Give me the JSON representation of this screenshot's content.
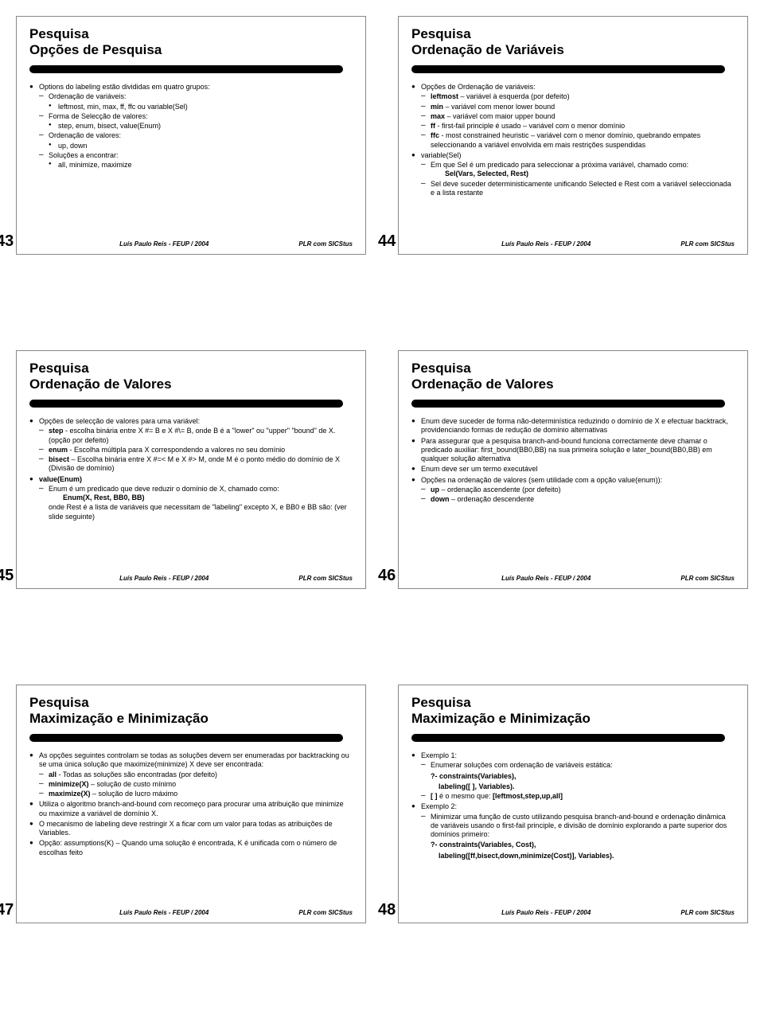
{
  "footer": {
    "center": "Luís Paulo Reis - FEUP / 2004",
    "right": "PLR com SICStus"
  },
  "slides": [
    {
      "num": "43",
      "sup": "Pesquisa",
      "main": "Opções de Pesquisa",
      "body": {
        "l1": [
          {
            "t": "Options do labeling estão divididas em quatro grupos:",
            "l2": [
              {
                "t": "Ordenação de variáveis:",
                "l3": [
                  {
                    "t": "leftmost, min, max, ff, ffc ou variable(Sel)"
                  }
                ]
              },
              {
                "t": "Forma de Selecção de valores:",
                "l3": [
                  {
                    "t": "step, enum, bisect, value(Enum)"
                  }
                ]
              },
              {
                "t": "Ordenação de valores:",
                "l3": [
                  {
                    "t": "up, down"
                  }
                ]
              },
              {
                "t": "Soluções a encontrar:",
                "l3": [
                  {
                    "t": "all, minimize, maximize"
                  }
                ]
              }
            ]
          }
        ]
      }
    },
    {
      "num": "44",
      "sup": "Pesquisa",
      "main": "Ordenação de Variáveis",
      "body": {
        "l1": [
          {
            "t": "Opções de Ordenação de variáveis:",
            "l2": [
              {
                "html": "<b>leftmost</b> – variável à esquerda (por defeito)"
              },
              {
                "html": "<b>min</b> – variável com menor lower bound"
              },
              {
                "html": "<b>max</b> – variável com maior upper bound"
              },
              {
                "html": "<b>ff</b> - first-fail principle é usado – variável com o menor domínio"
              },
              {
                "html": "<b>ffc</b> - most constrained heuristic – variável com o menor domínio, quebrando empates seleccionando a variável envolvida em mais restrições suspendidas"
              }
            ]
          },
          {
            "t": "variable(Sel)",
            "l2": [
              {
                "t": "Em que Sel é um predicado para seleccionar a próxima variável, chamado como:",
                "plain": [
                  "Sel(Vars, Selected, Rest)"
                ],
                "plainBold": true
              },
              {
                "t": "Sel deve suceder deterministicamente unificando Selected e Rest com a variável seleccionada e a lista restante"
              }
            ]
          }
        ]
      }
    },
    {
      "num": "45",
      "sup": "Pesquisa",
      "main": "Ordenação de Valores",
      "body": {
        "l1": [
          {
            "t": "Opções de selecção de valores para uma variável:",
            "l2": [
              {
                "html": "<b>step</b> - escolha binária entre X #= B e X #\\= B, onde B é a \"lower\" ou \"upper\" \"bound\" de X. (opção por defeito)"
              },
              {
                "html": "<b>enum</b> - Escolha múltipla para X correspondendo a valores no seu domínio"
              },
              {
                "html": "<b>bisect</b> – Escolha binária entre X #=&lt; M e X #&gt; M, onde M é o ponto médio do domínio de X (Divisão de domínio)"
              }
            ]
          },
          {
            "html": "<b>value(Enum)</b>",
            "l2": [
              {
                "t": "Enum é um predicado que deve reduzir o domínio de X, chamado como:",
                "plain": [
                  "Enum(X, Rest, BB0, BB)"
                ],
                "plainBold": true
              },
              {
                "t": "onde Rest é a lista de variáveis que necessitam de \"labeling\" excepto X, e BB0 e BB são: (ver slide seguinte)",
                "noBullet": true
              }
            ]
          }
        ]
      }
    },
    {
      "num": "46",
      "sup": "Pesquisa",
      "main": "Ordenação de Valores",
      "body": {
        "l1": [
          {
            "t": "Enum deve suceder de forma não-determinística reduzindo o domínio de X e efectuar backtrack, providenciando formas de redução de domínio alternativas"
          },
          {
            "t": "Para assegurar que a pesquisa branch-and-bound funciona correctamente deve chamar o predicado auxiliar: first_bound(BB0,BB) na sua primeira solução e later_bound(BB0,BB) em qualquer solução alternativa"
          },
          {
            "t": "Enum deve ser um termo executável"
          },
          {
            "t": "Opções na ordenação de valores (sem utilidade com a opção value(enum)):",
            "l2": [
              {
                "html": "<b>up</b> – ordenação ascendente (por defeito)"
              },
              {
                "html": "<b>down</b> – ordenação descendente"
              }
            ]
          }
        ]
      }
    },
    {
      "num": "47",
      "sup": "Pesquisa",
      "main": "Maximização e Minimização",
      "body": {
        "l1": [
          {
            "t": "As opções seguintes controlam se todas as soluções devem ser enumeradas por backtracking ou se uma única solução que maximize(minimize) X deve ser encontrada:",
            "l2": [
              {
                "html": "<b>all</b> - Todas as soluções são encontradas (por defeito)"
              },
              {
                "html": "<b>minimize(X)</b> – solução de custo mínimo"
              },
              {
                "html": "<b>maximize(X)</b> – solução de lucro máximo"
              }
            ]
          },
          {
            "t": "Utiliza o algoritmo branch-and-bound com recomeço para procurar uma atribuição que minimize ou maximize a variável de domínio X."
          },
          {
            "t": "O mecanismo de labeling deve restringir X a ficar com um valor para todas as atribuições de Variables."
          },
          {
            "t": "Opção: assumptions(K) – Quando uma solução é encontrada, K é unificada com o número de escolhas feito"
          }
        ]
      }
    },
    {
      "num": "48",
      "sup": "Pesquisa",
      "main": "Maximização e Minimização",
      "body": {
        "l1": [
          {
            "t": "Exemplo 1:",
            "l2": [
              {
                "t": "Enumerar soluções com ordenação de variáveis estática:",
                "plainHtml": [
                  "<b>?- constraints(Variables),</b>",
                  "&nbsp;&nbsp;&nbsp;&nbsp;<b>labeling([ ], Variables).</b>"
                ]
              },
              {
                "html": "<b>[ ]</b> é o mesmo que: <b>[leftmost,step,up,all]</b>"
              }
            ]
          },
          {
            "t": "Exemplo 2:",
            "l2": [
              {
                "t": "Minimizar uma função de custo utilizando pesquisa branch-and-bound e ordenação dinâmica de variáveis usando o first-fail principle, e divisão de domínio explorando a parte superior dos domínios primeiro:",
                "plainHtml": [
                  "<b>?- constraints(Variables, Cost),</b>",
                  "&nbsp;&nbsp;&nbsp;&nbsp;<b>labeling([ff,bisect,down,minimize(Cost)], Variables).</b>"
                ]
              }
            ]
          }
        ]
      }
    }
  ]
}
